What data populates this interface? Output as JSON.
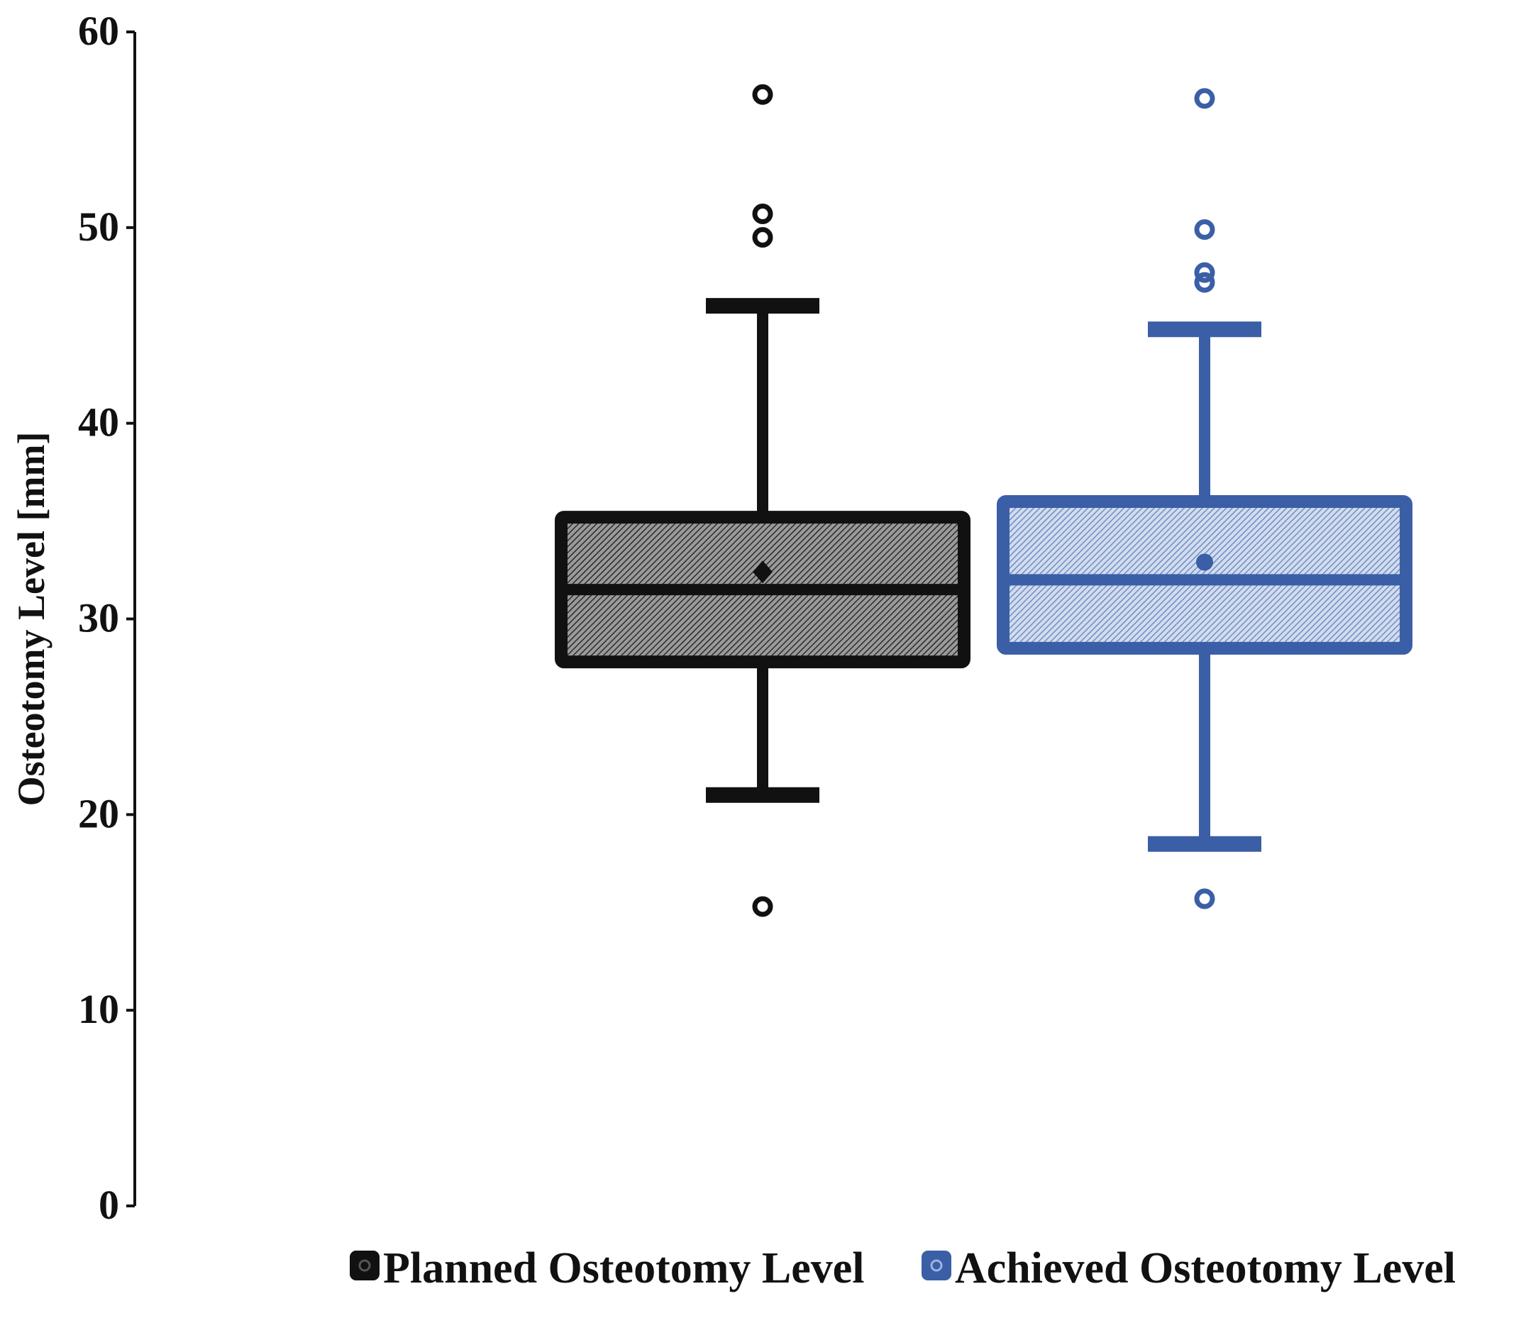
{
  "chart_data": {
    "type": "box",
    "ylabel": "Osteotomy Level [mm]",
    "ylim": [
      0,
      60
    ],
    "yticks": [
      0,
      10,
      20,
      30,
      40,
      50,
      60
    ],
    "legend_position": "bottom",
    "series": [
      {
        "name": "Planned Osteotomy Level",
        "color": "#111111",
        "whisker_low": 21.0,
        "q1": 27.8,
        "median": 31.5,
        "q3": 35.2,
        "whisker_high": 46.0,
        "mean": 32.4,
        "outliers": [
          15.3,
          49.5,
          50.7,
          56.8
        ]
      },
      {
        "name": "Achieved Osteotomy Level",
        "color": "#3b5fa6",
        "whisker_low": 18.5,
        "q1": 28.5,
        "median": 32.0,
        "q3": 36.0,
        "whisker_high": 44.8,
        "mean": 32.9,
        "outliers": [
          15.7,
          47.2,
          47.7,
          49.9,
          56.6
        ]
      }
    ]
  }
}
